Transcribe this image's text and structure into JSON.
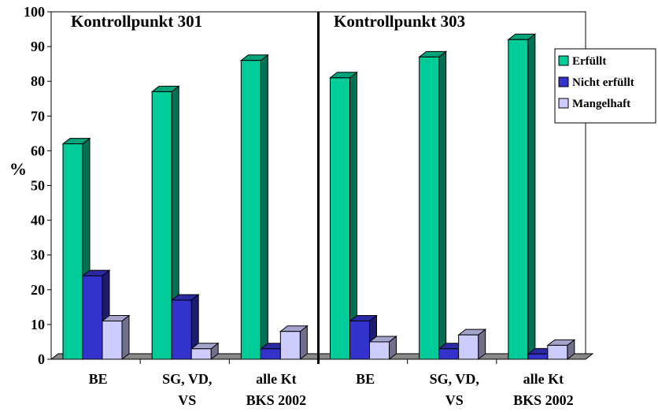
{
  "chart_data": {
    "type": "bar",
    "ylabel": "%",
    "ylim": [
      0,
      100
    ],
    "yticks": [
      0,
      10,
      20,
      30,
      40,
      50,
      60,
      70,
      80,
      90,
      100
    ],
    "panels": [
      {
        "title": "Kontrollpunkt 301",
        "categories": [
          "BE",
          "SG, VD, VS",
          "alle Kt BKS 2002"
        ]
      },
      {
        "title": "Kontrollpunkt 303",
        "categories": [
          "BE",
          "SG, VD, VS",
          "alle Kt BKS 2002"
        ]
      }
    ],
    "categories": [
      "BE",
      "SG, VD, VS",
      "alle Kt BKS 2002",
      "BE",
      "SG, VD, VS",
      "alle Kt BKS 2002"
    ],
    "category_lines": [
      [
        "BE"
      ],
      [
        "SG, VD,",
        "VS"
      ],
      [
        "alle Kt",
        "BKS 2002"
      ],
      [
        "BE"
      ],
      [
        "SG, VD,",
        "VS"
      ],
      [
        "alle Kt",
        "BKS 2002"
      ]
    ],
    "series": [
      {
        "name": "Erfüllt",
        "color": "#00CC99",
        "values": [
          62,
          77,
          86,
          81,
          87,
          92
        ]
      },
      {
        "name": "Nicht erfüllt",
        "color": "#3333CC",
        "values": [
          24,
          17,
          3,
          11,
          3,
          1.5
        ]
      },
      {
        "name": "Mangelhaft",
        "color": "#CCCCFF",
        "values": [
          11,
          3,
          8,
          5,
          7,
          4
        ]
      }
    ],
    "grid": false,
    "legend": "right"
  }
}
